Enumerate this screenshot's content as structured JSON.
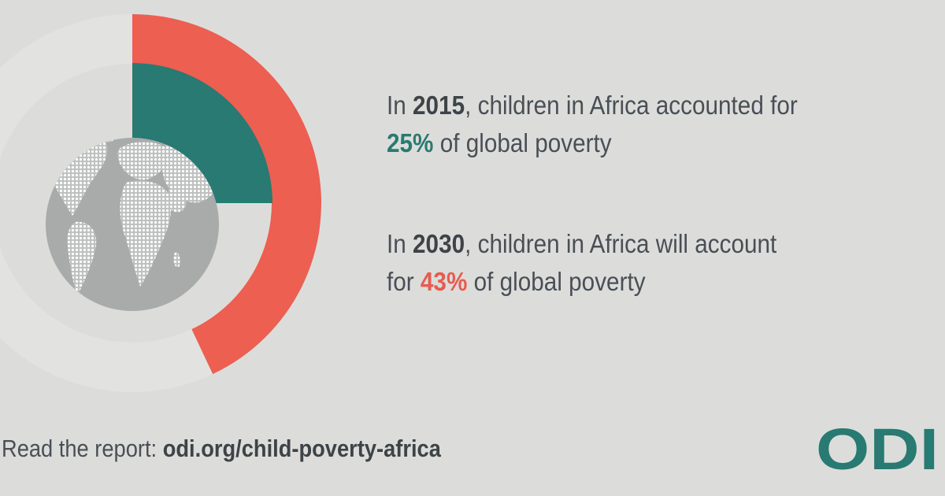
{
  "chart_data": {
    "type": "pie",
    "series": [
      {
        "year": "2015",
        "value": 25,
        "unit": "%",
        "color": "#287a72"
      },
      {
        "year": "2030",
        "value": 43,
        "unit": "%",
        "color": "#ec5f51"
      }
    ],
    "track_color": "#e2e3e1",
    "globe_color": "#a9abab"
  },
  "stats": [
    {
      "prefix": "In ",
      "year": "2015",
      "middle": ", children in Africa accounted for",
      "percent": "25%",
      "suffix": " of global poverty"
    },
    {
      "prefix": "In ",
      "year": "2030",
      "middle": ", children in Africa will account",
      "line2_prefix": "for ",
      "percent": "43%",
      "suffix": " of global poverty"
    }
  ],
  "footer": {
    "label": "Read the report: ",
    "link": "odi.org/child-poverty-africa"
  },
  "logo": {
    "text": "ODI",
    "color": "#287a72"
  }
}
